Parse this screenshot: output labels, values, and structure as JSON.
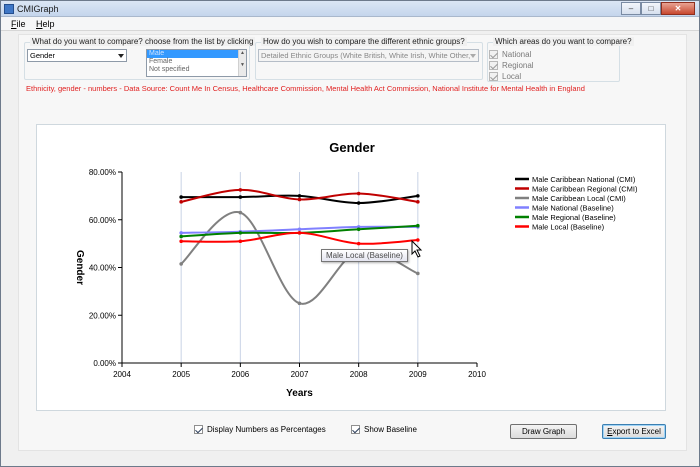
{
  "window": {
    "title": "CMIGraph",
    "min_glyph": "–",
    "max_glyph": "□",
    "close_glyph": "✕"
  },
  "menu": [
    {
      "key": "F",
      "rest": "ile"
    },
    {
      "key": "H",
      "rest": "elp"
    }
  ],
  "compare_group": {
    "label": "What do you want to compare? choose from the list by clicking",
    "selected": "Gender",
    "list_items": [
      "Male",
      "Female",
      "Not specified"
    ],
    "selected_index": 0
  },
  "ethnic_group": {
    "label": "How do you wish to compare the different ethnic groups?",
    "value": "Detailed Ethnic Groups (White British, White Irish, White Other,"
  },
  "areas_group": {
    "label": "Which areas do you want to compare?",
    "items": [
      {
        "label": "National",
        "checked": true
      },
      {
        "label": "Regional",
        "checked": true
      },
      {
        "label": "Local",
        "checked": true
      }
    ]
  },
  "source_text": "Ethnicity, gender - numbers - Data Source: Count Me In Census, Healthcare Commission, Mental Health Act Commission, National Institute for Mental Health in England",
  "chart_data": {
    "type": "line",
    "title": "Gender",
    "xlabel": "Years",
    "ylabel": "Gender",
    "xlim": [
      2004,
      2010
    ],
    "ylim": [
      0,
      80
    ],
    "x_ticks": [
      "2004",
      "2005",
      "2006",
      "2007",
      "2008",
      "2009",
      "2010"
    ],
    "y_ticks": [
      "0.00%",
      "20.00%",
      "40.00%",
      "60.00%",
      "80.00%"
    ],
    "grid": "vertical",
    "legend_position": "right",
    "x": [
      2005,
      2006,
      2007,
      2008,
      2009
    ],
    "series": [
      {
        "name": "Male Caribbean National (CMI)",
        "color": "#000000",
        "values": [
          69.5,
          69.5,
          70.0,
          67.0,
          70.0
        ]
      },
      {
        "name": "Male Caribbean Regional (CMI)",
        "color": "#c00000",
        "values": [
          67.5,
          72.5,
          68.5,
          71.0,
          67.5
        ]
      },
      {
        "name": "Male Caribbean Local (CMI)",
        "color": "#808080",
        "values": [
          41.5,
          63.0,
          25.0,
          47.0,
          37.5
        ]
      },
      {
        "name": "Male National (Baseline)",
        "color": "#8080ff",
        "values": [
          54.5,
          55.0,
          56.0,
          57.0,
          57.0
        ]
      },
      {
        "name": "Male Regional (Baseline)",
        "color": "#008000",
        "values": [
          53.0,
          54.5,
          54.5,
          56.0,
          57.5
        ]
      },
      {
        "name": "Male Local (Baseline)",
        "color": "#ff0000",
        "values": [
          51.0,
          51.0,
          54.5,
          50.0,
          51.5
        ]
      }
    ]
  },
  "tooltip_text": "Male Local (Baseline)",
  "options": [
    {
      "label": "Display Numbers as Percentages",
      "checked": true
    },
    {
      "label": "Show Baseline",
      "checked": true
    }
  ],
  "buttons": {
    "draw": "Draw Graph",
    "export_key": "E",
    "export_rest": "xport to Excel"
  },
  "icons": {
    "app": "chart-app-icon",
    "cursor": "mouse-pointer-icon"
  }
}
